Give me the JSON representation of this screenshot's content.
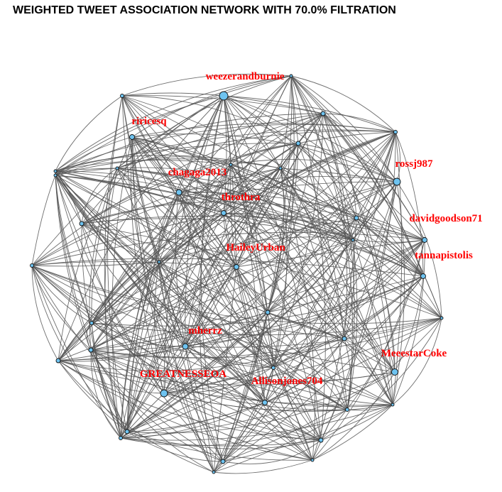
{
  "title": "WEIGHTED TWEET ASSOCIATION NETWORK WITH 70.0% FILTRATION",
  "colors": {
    "edge": "#555555",
    "node_fill": "#6ec3f0",
    "node_stroke": "#111111",
    "label": "#ff0000",
    "title": "#000000"
  },
  "labeled_nodes": [
    {
      "id": "weezerandburnie",
      "label": "weezerandburnie"
    },
    {
      "id": "riricesq",
      "label": "riricesq"
    },
    {
      "id": "rossj987",
      "label": "rossj987"
    },
    {
      "id": "chagaga2013",
      "label": "chagaga2013"
    },
    {
      "id": "throthra",
      "label": "throthra"
    },
    {
      "id": "davidgoodson71",
      "label": "davidgoodson71"
    },
    {
      "id": "HaileyUrban",
      "label": "HaileyUrban"
    },
    {
      "id": "tannapistolis",
      "label": "tannapistolis"
    },
    {
      "id": "mherrz",
      "label": "mherrz"
    },
    {
      "id": "MeeestarCoke",
      "label": "MeeestarCoke"
    },
    {
      "id": "GREATNESSEOA",
      "label": "GREATNESSEOA"
    },
    {
      "id": "Allisonjones704",
      "label": "Allisonjones704"
    }
  ]
}
